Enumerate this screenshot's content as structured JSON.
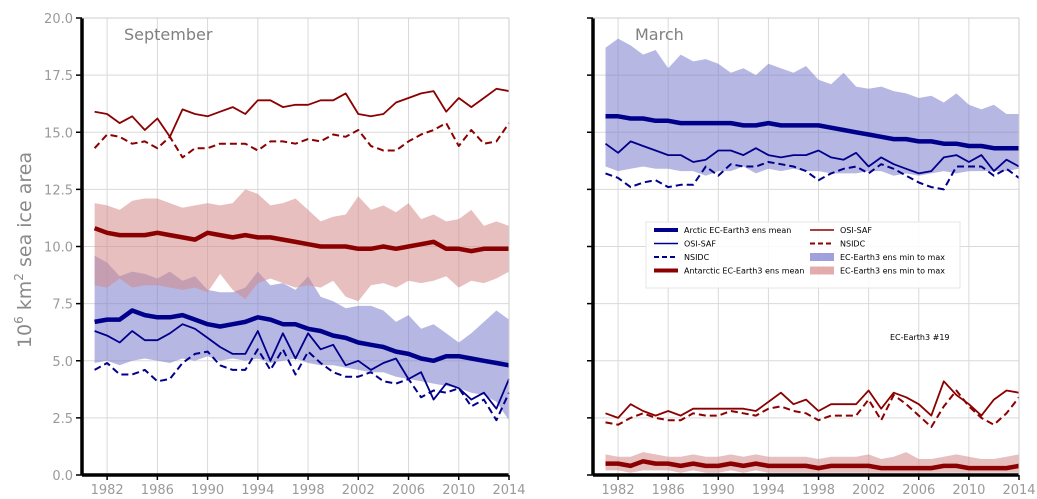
{
  "chart_data": {
    "type": "line",
    "ylabel_main": "10",
    "ylabel_sup": "6",
    "ylabel_rest": " km",
    "ylabel_sup2": "2",
    "ylabel_tail": " sea ice area",
    "ylim": [
      0,
      20
    ],
    "xlim": [
      1980,
      2014
    ],
    "yticks": [
      "0.0",
      "2.5",
      "5.0",
      "7.5",
      "10.0",
      "12.5",
      "15.0",
      "17.5",
      "20.0"
    ],
    "xticks": [
      "1982",
      "1986",
      "1990",
      "1994",
      "1998",
      "2002",
      "2006",
      "2010",
      "2014"
    ],
    "grid": true,
    "legend_position": "center",
    "legend": [
      {
        "label": "Arctic EC-Earth3 ens mean",
        "color": "#00008b",
        "style": "thick"
      },
      {
        "label": "OSI-SAF",
        "color": "#00008b",
        "style": "solid"
      },
      {
        "label": "NSIDC",
        "color": "#00008b",
        "style": "dashed"
      },
      {
        "label": "Antarctic EC-Earth3 ens mean",
        "color": "#8b0000",
        "style": "thick"
      },
      {
        "label": "OSI-SAF",
        "color": "#8b0000",
        "style": "solid"
      },
      {
        "label": "NSIDC",
        "color": "#8b0000",
        "style": "dashed"
      },
      {
        "label": "EC-Earth3 ens min to max",
        "color": "#8080d0",
        "style": "fill"
      },
      {
        "label": "EC-Earth3 ens min to max",
        "color": "#d89090",
        "style": "fill"
      }
    ],
    "annotation": "EC-Earth3 #19",
    "colors": {
      "arctic": "#00008b",
      "antarctic": "#8b0000",
      "arctic_fill": "#7b7bcc",
      "antarctic_fill": "#d48a8a"
    },
    "panels": [
      {
        "title": "September",
        "x": [
          1981,
          1982,
          1983,
          1984,
          1985,
          1986,
          1987,
          1988,
          1989,
          1990,
          1991,
          1992,
          1993,
          1994,
          1995,
          1996,
          1997,
          1998,
          1999,
          2000,
          2001,
          2002,
          2003,
          2004,
          2005,
          2006,
          2007,
          2008,
          2009,
          2010,
          2011,
          2012,
          2013,
          2014
        ],
        "series": [
          {
            "role": "arctic_ens_mean",
            "values": [
              6.7,
              6.8,
              6.8,
              7.2,
              7.0,
              6.9,
              6.9,
              7.0,
              6.8,
              6.6,
              6.5,
              6.6,
              6.7,
              6.9,
              6.8,
              6.6,
              6.6,
              6.4,
              6.3,
              6.1,
              6.0,
              5.8,
              5.7,
              5.6,
              5.4,
              5.3,
              5.1,
              5.0,
              5.2,
              5.2,
              5.1,
              5.0,
              4.9,
              4.8
            ]
          },
          {
            "role": "arctic_osisaf",
            "values": [
              6.3,
              6.1,
              5.8,
              6.3,
              5.9,
              5.9,
              6.2,
              6.6,
              6.4,
              6.0,
              5.6,
              5.3,
              5.3,
              6.3,
              5.0,
              6.2,
              5.1,
              6.2,
              5.5,
              5.7,
              4.8,
              5.0,
              4.6,
              4.9,
              5.1,
              4.2,
              4.5,
              3.3,
              4.0,
              3.8,
              3.3,
              3.6,
              2.9,
              4.2
            ]
          },
          {
            "role": "arctic_nsidc",
            "values": [
              4.6,
              4.9,
              4.4,
              4.4,
              4.6,
              4.1,
              4.2,
              4.9,
              5.3,
              5.4,
              4.8,
              4.6,
              4.6,
              5.5,
              4.6,
              5.5,
              4.4,
              5.4,
              4.9,
              4.5,
              4.3,
              4.3,
              4.5,
              4.1,
              4.0,
              4.2,
              3.4,
              3.7,
              3.6,
              3.8,
              3.0,
              3.3,
              2.4,
              3.6
            ]
          },
          {
            "role": "arctic_min",
            "values": [
              4.9,
              5.0,
              4.8,
              5.0,
              5.1,
              5.0,
              4.9,
              5.1,
              5.0,
              5.2,
              5.0,
              5.1,
              5.0,
              5.1,
              4.9,
              5.0,
              5.1,
              4.9,
              4.8,
              4.8,
              4.7,
              4.6,
              4.5,
              4.5,
              4.3,
              4.2,
              4.1,
              4.0,
              3.9,
              3.8,
              3.6,
              3.5,
              3.2,
              2.4
            ]
          },
          {
            "role": "arctic_max",
            "values": [
              9.6,
              9.3,
              8.7,
              8.9,
              8.8,
              8.6,
              8.9,
              8.5,
              8.7,
              8.1,
              8.0,
              8.0,
              8.2,
              8.9,
              8.3,
              8.4,
              8.1,
              8.7,
              7.8,
              7.6,
              7.3,
              7.4,
              7.4,
              7.2,
              6.7,
              7.0,
              6.4,
              6.6,
              6.2,
              5.8,
              6.2,
              6.7,
              7.2,
              6.8
            ]
          },
          {
            "role": "antarctic_ens_mean",
            "values": [
              10.8,
              10.6,
              10.5,
              10.5,
              10.5,
              10.6,
              10.5,
              10.4,
              10.3,
              10.6,
              10.5,
              10.4,
              10.5,
              10.4,
              10.4,
              10.3,
              10.2,
              10.1,
              10.0,
              10.0,
              10.0,
              9.9,
              9.9,
              10.0,
              9.9,
              10.0,
              10.1,
              10.2,
              9.9,
              9.9,
              9.8,
              9.9,
              9.9,
              9.9
            ]
          },
          {
            "role": "antarctic_osisaf",
            "values": [
              15.9,
              15.8,
              15.4,
              15.7,
              15.1,
              15.6,
              14.8,
              16.0,
              15.8,
              15.7,
              15.9,
              16.1,
              15.8,
              16.4,
              16.4,
              16.1,
              16.2,
              16.2,
              16.4,
              16.4,
              16.7,
              15.8,
              15.7,
              15.8,
              16.3,
              16.5,
              16.7,
              16.8,
              15.9,
              16.5,
              16.1,
              16.5,
              16.9,
              16.8
            ]
          },
          {
            "role": "antarctic_nsidc",
            "values": [
              14.3,
              14.9,
              14.8,
              14.5,
              14.6,
              14.3,
              14.8,
              13.9,
              14.3,
              14.3,
              14.5,
              14.5,
              14.5,
              14.2,
              14.6,
              14.6,
              14.5,
              14.7,
              14.6,
              14.9,
              14.8,
              15.1,
              14.4,
              14.2,
              14.2,
              14.6,
              14.9,
              15.1,
              15.4,
              14.4,
              15.1,
              14.5,
              14.6,
              15.4
            ]
          },
          {
            "role": "antarctic_min",
            "values": [
              8.3,
              8.2,
              8.6,
              8.2,
              8.3,
              8.3,
              8.2,
              8.1,
              8.2,
              8.0,
              8.8,
              8.1,
              7.7,
              8.4,
              8.6,
              8.4,
              8.2,
              8.3,
              8.2,
              8.5,
              7.8,
              7.6,
              8.3,
              8.4,
              8.2,
              8.5,
              8.4,
              8.5,
              8.7,
              8.2,
              8.5,
              8.4,
              8.6,
              8.9
            ]
          },
          {
            "role": "antarctic_max",
            "values": [
              11.9,
              11.8,
              11.6,
              12.0,
              12.1,
              12.1,
              11.9,
              11.7,
              11.8,
              11.9,
              11.8,
              11.9,
              12.5,
              12.3,
              11.8,
              11.9,
              12.1,
              11.6,
              11.1,
              11.3,
              11.4,
              12.2,
              11.6,
              11.8,
              11.5,
              11.9,
              11.2,
              11.4,
              11.1,
              11.2,
              11.6,
              10.9,
              11.1,
              10.9
            ]
          }
        ]
      },
      {
        "title": "March",
        "x": [
          1981,
          1982,
          1983,
          1984,
          1985,
          1986,
          1987,
          1988,
          1989,
          1990,
          1991,
          1992,
          1993,
          1994,
          1995,
          1996,
          1997,
          1998,
          1999,
          2000,
          2001,
          2002,
          2003,
          2004,
          2005,
          2006,
          2007,
          2008,
          2009,
          2010,
          2011,
          2012,
          2013,
          2014
        ],
        "series": [
          {
            "role": "arctic_ens_mean",
            "values": [
              15.7,
              15.7,
              15.6,
              15.6,
              15.5,
              15.5,
              15.4,
              15.4,
              15.4,
              15.4,
              15.4,
              15.3,
              15.3,
              15.4,
              15.3,
              15.3,
              15.3,
              15.3,
              15.2,
              15.1,
              15.0,
              14.9,
              14.8,
              14.7,
              14.7,
              14.6,
              14.6,
              14.5,
              14.5,
              14.4,
              14.4,
              14.3,
              14.3,
              14.3
            ]
          },
          {
            "role": "arctic_osisaf",
            "values": [
              14.5,
              14.1,
              14.6,
              14.4,
              14.2,
              14.0,
              14.0,
              13.7,
              13.8,
              14.2,
              14.2,
              14.0,
              14.3,
              14.0,
              13.9,
              14.0,
              14.0,
              14.2,
              13.9,
              13.8,
              14.1,
              13.5,
              13.9,
              13.6,
              13.4,
              13.2,
              13.3,
              13.9,
              14.0,
              13.7,
              14.0,
              13.3,
              13.8,
              13.5
            ]
          },
          {
            "role": "arctic_nsidc",
            "values": [
              13.2,
              13.0,
              12.6,
              12.8,
              12.9,
              12.6,
              12.7,
              12.7,
              13.5,
              13.1,
              13.6,
              13.5,
              13.5,
              13.7,
              13.6,
              13.5,
              13.3,
              12.9,
              13.2,
              13.4,
              13.5,
              13.2,
              13.6,
              13.4,
              13.1,
              12.8,
              12.6,
              12.5,
              13.5,
              13.5,
              13.5,
              13.1,
              13.4,
              13.0
            ]
          },
          {
            "role": "arctic_min",
            "values": [
              13.5,
              13.3,
              13.4,
              13.5,
              13.4,
              13.4,
              13.3,
              13.3,
              13.1,
              13.3,
              13.3,
              13.5,
              13.2,
              13.4,
              13.3,
              13.4,
              13.3,
              13.3,
              13.2,
              13.2,
              13.2,
              13.3,
              13.3,
              13.1,
              13.2,
              13.1,
              13.2,
              13.3,
              13.2,
              13.3,
              13.3,
              13.3,
              13.3,
              13.4
            ]
          },
          {
            "role": "arctic_max",
            "values": [
              18.7,
              19.1,
              18.8,
              18.4,
              18.6,
              17.8,
              18.4,
              18.1,
              18.2,
              18.0,
              17.6,
              17.8,
              17.5,
              18.0,
              17.8,
              17.6,
              17.9,
              17.3,
              17.1,
              17.6,
              17.0,
              16.9,
              17.0,
              16.8,
              16.7,
              16.5,
              16.6,
              16.3,
              16.7,
              16.2,
              16.0,
              16.2,
              15.8,
              15.8
            ]
          },
          {
            "role": "antarctic_ens_mean",
            "values": [
              0.5,
              0.5,
              0.4,
              0.6,
              0.5,
              0.5,
              0.4,
              0.5,
              0.4,
              0.4,
              0.5,
              0.4,
              0.5,
              0.4,
              0.4,
              0.4,
              0.4,
              0.3,
              0.4,
              0.4,
              0.4,
              0.4,
              0.3,
              0.3,
              0.3,
              0.3,
              0.3,
              0.4,
              0.4,
              0.3,
              0.3,
              0.3,
              0.3,
              0.4
            ]
          },
          {
            "role": "antarctic_osisaf",
            "values": [
              2.7,
              2.5,
              3.1,
              2.8,
              2.6,
              2.8,
              2.6,
              2.9,
              2.9,
              2.9,
              2.9,
              2.9,
              2.8,
              3.2,
              3.6,
              3.1,
              3.3,
              2.8,
              3.1,
              3.1,
              3.1,
              3.7,
              2.9,
              3.6,
              3.4,
              3.1,
              2.6,
              4.1,
              3.5,
              3.1,
              2.6,
              3.3,
              3.7,
              3.6
            ]
          },
          {
            "role": "antarctic_nsidc",
            "values": [
              2.3,
              2.2,
              2.5,
              2.7,
              2.5,
              2.4,
              2.4,
              2.7,
              2.6,
              2.6,
              2.8,
              2.7,
              2.6,
              2.9,
              3.0,
              2.8,
              2.7,
              2.4,
              2.6,
              2.6,
              2.6,
              3.3,
              2.4,
              3.5,
              3.1,
              2.6,
              2.1,
              3.0,
              3.7,
              3.0,
              2.5,
              2.2,
              2.7,
              3.4
            ]
          },
          {
            "role": "antarctic_min",
            "values": [
              0.2,
              0.2,
              0.1,
              0.2,
              0.2,
              0.2,
              0.1,
              0.2,
              0.1,
              0.1,
              0.2,
              0.1,
              0.2,
              0.1,
              0.1,
              0.1,
              0.1,
              0.1,
              0.1,
              0.1,
              0.1,
              0.1,
              0.1,
              0.1,
              0.1,
              0.1,
              0.1,
              0.1,
              0.1,
              0.1,
              0.1,
              0.1,
              0.1,
              0.1
            ]
          },
          {
            "role": "antarctic_max",
            "values": [
              0.9,
              0.8,
              0.8,
              1.0,
              0.9,
              0.8,
              0.8,
              0.9,
              0.8,
              0.8,
              0.9,
              0.8,
              0.9,
              0.8,
              0.8,
              0.8,
              0.8,
              0.7,
              0.8,
              0.8,
              0.8,
              0.9,
              0.7,
              0.8,
              1.0,
              0.7,
              0.7,
              0.8,
              0.9,
              0.8,
              0.7,
              0.7,
              0.8,
              0.9
            ]
          }
        ]
      }
    ]
  }
}
